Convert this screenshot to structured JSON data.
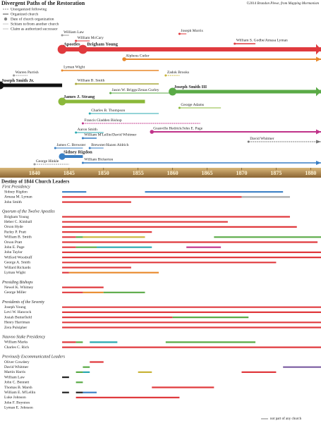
{
  "title": "Divergent Paths of the Restoration",
  "credit": "©2014 Brandon Plewe, from Mapping Mormonism",
  "legend": [
    "Unorganized following",
    "Organized church",
    "Date of church organization",
    "Schism to/from another church",
    "Claim as authorized successor"
  ],
  "xlim": [
    1835,
    1881.5
  ],
  "years": [
    1840,
    1845,
    1850,
    1855,
    1860,
    1865,
    1870,
    1875,
    1880
  ],
  "branches": [
    {
      "label": "Joseph Smith Jr.",
      "start": 1835,
      "end": 1844,
      "color": "#111111",
      "width": 5
    },
    {
      "label": "Warren Parrish",
      "start": 1837,
      "end": 1839,
      "color": "#999999",
      "width": 1
    },
    {
      "label": "George Hinkle",
      "start": 1840,
      "end": 1845,
      "color": "#999999",
      "width": 1
    },
    {
      "label": "William Law",
      "start": 1844,
      "end": 1845,
      "color": "#999999",
      "width": 1
    },
    {
      "label": "William McCary",
      "start": 1846,
      "end": 1848,
      "color": "#e03a3e",
      "width": 1
    },
    {
      "label": "Apostles",
      "start": 1844,
      "end": 1847,
      "color": "#e03a3e",
      "width": 6
    },
    {
      "label": "Brigham Young",
      "start": 1847,
      "end": 1881.5,
      "color": "#e03a3e",
      "width": 6
    },
    {
      "label": "Joseph Morris",
      "start": 1861,
      "end": 1862,
      "color": "#e03a3e",
      "width": 1
    },
    {
      "label": "William S. Godbe/Amasa Lyman",
      "start": 1869,
      "end": 1872,
      "color": "#e03a3e",
      "width": 1.5
    },
    {
      "label": "Alpheus Cutler",
      "start": 1853,
      "end": 1881.5,
      "color": "#e8892b",
      "width": 2
    },
    {
      "label": "Lyman Wight",
      "start": 1844,
      "end": 1858,
      "color": "#e8892b",
      "width": 1.5
    },
    {
      "label": "Zadok Brooks",
      "start": 1859,
      "end": 1861,
      "color": "#c9b43a",
      "width": 1
    },
    {
      "label": "William B. Smith",
      "start": 1846,
      "end": 1858,
      "color": "#a9a83a",
      "width": 1.5
    },
    {
      "label": "James J. Strang",
      "start": 1844,
      "end": 1856,
      "color": "#8bb83a",
      "width": 5
    },
    {
      "label": "Jason W. Briggs/Zenas Gurley",
      "start": 1851,
      "end": 1860,
      "color": "#5aaa46",
      "width": 1
    },
    {
      "label": "Joseph Smith III",
      "start": 1860,
      "end": 1881.5,
      "color": "#5aaa46",
      "width": 5
    },
    {
      "label": "George Adams",
      "start": 1861,
      "end": 1867,
      "color": "#8bb83a",
      "width": 1
    },
    {
      "label": "Charles B. Thompson",
      "start": 1848,
      "end": 1858,
      "color": "#2aa8b0",
      "width": 1
    },
    {
      "label": "Francis Gladden Bishop",
      "start": 1847,
      "end": 1864,
      "color": "#c0338a",
      "width": 1
    },
    {
      "label": "Aaron Smith",
      "start": 1846,
      "end": 1850,
      "color": "#2aa8b0",
      "width": 1
    },
    {
      "label": "Granville Hedrick/John E. Page",
      "start": 1857,
      "end": 1881.5,
      "color": "#c0338a",
      "width": 2
    },
    {
      "label": "William M'Lellin/David Whitmer",
      "start": 1847,
      "end": 1849,
      "color": "#3a7fc4",
      "width": 1.5
    },
    {
      "label": "David Whitmer",
      "start": 1871,
      "end": 1881.5,
      "color": "#777777",
      "width": 1
    },
    {
      "label": "James C. Brewster",
      "start": 1843,
      "end": 1847,
      "color": "#3a7fc4",
      "width": 1
    },
    {
      "label": "Brewster/Hazen Aldrich",
      "start": 1848,
      "end": 1850,
      "color": "#3a7fc4",
      "width": 1
    },
    {
      "label": "Sidney Rigdon",
      "start": 1844,
      "end": 1847,
      "color": "#3a7fc4",
      "width": 4
    },
    {
      "label": "William Bickerton",
      "start": 1847,
      "end": 1881.5,
      "color": "#3a7fc4",
      "width": 1.5
    }
  ],
  "section_title": "Destiny of 1844 Church Leaders",
  "groups": [
    {
      "title": "First Presidency",
      "rows": [
        {
          "name": "Sidney Rigdon",
          "segments": [
            {
              "start": 1844,
              "end": 1847.5,
              "color": "#3a7fc4"
            },
            {
              "start": 1856,
              "end": 1876,
              "color": "#3a7fc4"
            }
          ]
        },
        {
          "name": "Amasa M. Lyman",
          "segments": [
            {
              "start": 1844,
              "end": 1870,
              "color": "#e03a3e"
            },
            {
              "start": 1870,
              "end": 1877,
              "color": "#aaaaaa"
            }
          ]
        },
        {
          "name": "John Smith",
          "segments": [
            {
              "start": 1844,
              "end": 1854,
              "color": "#e03a3e"
            }
          ]
        }
      ]
    },
    {
      "title": "Quorum of the Twelve Apostles",
      "rows": [
        {
          "name": "Brigham Young",
          "segments": [
            {
              "start": 1844,
              "end": 1877,
              "color": "#e03a3e"
            }
          ]
        },
        {
          "name": "Heber C. Kimball",
          "segments": [
            {
              "start": 1844,
              "end": 1868,
              "color": "#e03a3e"
            }
          ]
        },
        {
          "name": "Orson Hyde",
          "segments": [
            {
              "start": 1844,
              "end": 1878,
              "color": "#e03a3e"
            }
          ]
        },
        {
          "name": "Parley P. Pratt",
          "segments": [
            {
              "start": 1844,
              "end": 1857,
              "color": "#e03a3e"
            }
          ]
        },
        {
          "name": "William B. Smith",
          "segments": [
            {
              "start": 1844,
              "end": 1846,
              "color": "#e03a3e"
            },
            {
              "start": 1846,
              "end": 1847,
              "color": "#5aaa46"
            },
            {
              "start": 1847,
              "end": 1856,
              "color": "#c9b43a"
            },
            {
              "start": 1866,
              "end": 1881.5,
              "color": "#5aaa46"
            }
          ]
        },
        {
          "name": "Orson Pratt",
          "segments": [
            {
              "start": 1844,
              "end": 1881,
              "color": "#e03a3e"
            }
          ]
        },
        {
          "name": "John E. Page",
          "segments": [
            {
              "start": 1844,
              "end": 1846,
              "color": "#e03a3e"
            },
            {
              "start": 1846,
              "end": 1849,
              "color": "#5aaa46"
            },
            {
              "start": 1849,
              "end": 1857,
              "color": "#2aa8b0"
            },
            {
              "start": 1862,
              "end": 1867,
              "color": "#c0338a"
            }
          ]
        },
        {
          "name": "John Taylor",
          "segments": [
            {
              "start": 1844,
              "end": 1881.5,
              "color": "#e03a3e"
            }
          ]
        },
        {
          "name": "Wilford Woodruff",
          "segments": [
            {
              "start": 1844,
              "end": 1881.5,
              "color": "#e03a3e"
            }
          ]
        },
        {
          "name": "George A. Smith",
          "segments": [
            {
              "start": 1844,
              "end": 1875,
              "color": "#e03a3e"
            }
          ]
        },
        {
          "name": "Willard Richards",
          "segments": [
            {
              "start": 1844,
              "end": 1854,
              "color": "#e03a3e"
            }
          ]
        },
        {
          "name": "Lyman Wight",
          "segments": [
            {
              "start": 1844,
              "end": 1845,
              "color": "#e03a3e"
            },
            {
              "start": 1845,
              "end": 1858,
              "color": "#e8892b"
            }
          ]
        }
      ]
    },
    {
      "title": "Presiding Bishops",
      "rows": [
        {
          "name": "Newel K. Whitney",
          "segments": [
            {
              "start": 1844,
              "end": 1850,
              "color": "#e03a3e"
            }
          ]
        },
        {
          "name": "George Miller",
          "segments": [
            {
              "start": 1844,
              "end": 1847,
              "color": "#e03a3e"
            },
            {
              "start": 1847,
              "end": 1850,
              "color": "#e8892b"
            },
            {
              "start": 1850,
              "end": 1856,
              "color": "#5aaa46"
            }
          ]
        }
      ]
    },
    {
      "title": "Presidents of the Seventy",
      "rows": [
        {
          "name": "Joseph Young",
          "segments": [
            {
              "start": 1844,
              "end": 1881.5,
              "color": "#e03a3e"
            }
          ]
        },
        {
          "name": "Levi W. Hancock",
          "segments": [
            {
              "start": 1844,
              "end": 1881.5,
              "color": "#e03a3e"
            }
          ]
        },
        {
          "name": "Josiah Butterfield",
          "segments": [
            {
              "start": 1844,
              "end": 1860,
              "color": "#e03a3e"
            },
            {
              "start": 1860,
              "end": 1871,
              "color": "#5aaa46"
            }
          ]
        },
        {
          "name": "Henry Harriman",
          "segments": [
            {
              "start": 1844,
              "end": 1881.5,
              "color": "#e03a3e"
            }
          ]
        },
        {
          "name": "Zera Pulsipher",
          "segments": [
            {
              "start": 1844,
              "end": 1881.5,
              "color": "#e03a3e"
            }
          ]
        }
      ]
    },
    {
      "title": "Nauvoo Stake Presidency",
      "rows": [
        {
          "name": "William Marks",
          "segments": [
            {
              "start": 1844,
              "end": 1846,
              "color": "#e03a3e"
            },
            {
              "start": 1846,
              "end": 1847,
              "color": "#5aaa46"
            },
            {
              "start": 1848,
              "end": 1852,
              "color": "#2aa8b0"
            },
            {
              "start": 1859,
              "end": 1872,
              "color": "#5aaa46"
            }
          ]
        },
        {
          "name": "Charles C. Rich",
          "segments": [
            {
              "start": 1844,
              "end": 1881.5,
              "color": "#e03a3e"
            }
          ]
        }
      ]
    },
    {
      "title": "Previously Excommunicated Leaders",
      "rows": [
        {
          "name": "Oliver Cowdery",
          "segments": [
            {
              "start": 1848,
              "end": 1850,
              "color": "#e03a3e"
            }
          ]
        },
        {
          "name": "David Whitmer",
          "segments": [
            {
              "start": 1847,
              "end": 1848,
              "color": "#5aaa46"
            },
            {
              "start": 1876,
              "end": 1881.5,
              "color": "#7a5aa0"
            }
          ]
        },
        {
          "name": "Martin Harris",
          "segments": [
            {
              "start": 1846,
              "end": 1847,
              "color": "#5aaa46"
            },
            {
              "start": 1847,
              "end": 1848,
              "color": "#2aa8b0"
            },
            {
              "start": 1855,
              "end": 1857,
              "color": "#c9b43a"
            },
            {
              "start": 1870,
              "end": 1875,
              "color": "#e03a3e"
            }
          ]
        },
        {
          "name": "William Law",
          "segments": [
            {
              "start": 1844,
              "end": 1845,
              "color": "#222222"
            }
          ]
        },
        {
          "name": "John C. Bennett",
          "segments": [
            {
              "start": 1846,
              "end": 1847,
              "color": "#5aaa46"
            }
          ]
        },
        {
          "name": "Thomas B. Marsh",
          "segments": [
            {
              "start": 1857,
              "end": 1866,
              "color": "#e03a3e"
            }
          ]
        },
        {
          "name": "William E. M'Lellin",
          "segments": [
            {
              "start": 1844,
              "end": 1845,
              "color": "#222222"
            },
            {
              "start": 1846,
              "end": 1847,
              "color": "#222222"
            },
            {
              "start": 1847,
              "end": 1849,
              "color": "#3a7fc4"
            }
          ]
        },
        {
          "name": "Luke Johnson",
          "segments": [
            {
              "start": 1846,
              "end": 1861,
              "color": "#e03a3e"
            }
          ]
        },
        {
          "name": "John F. Boynton",
          "segments": []
        },
        {
          "name": "Lyman E. Johnson",
          "segments": []
        }
      ]
    }
  ],
  "footnote": "not part of any church"
}
